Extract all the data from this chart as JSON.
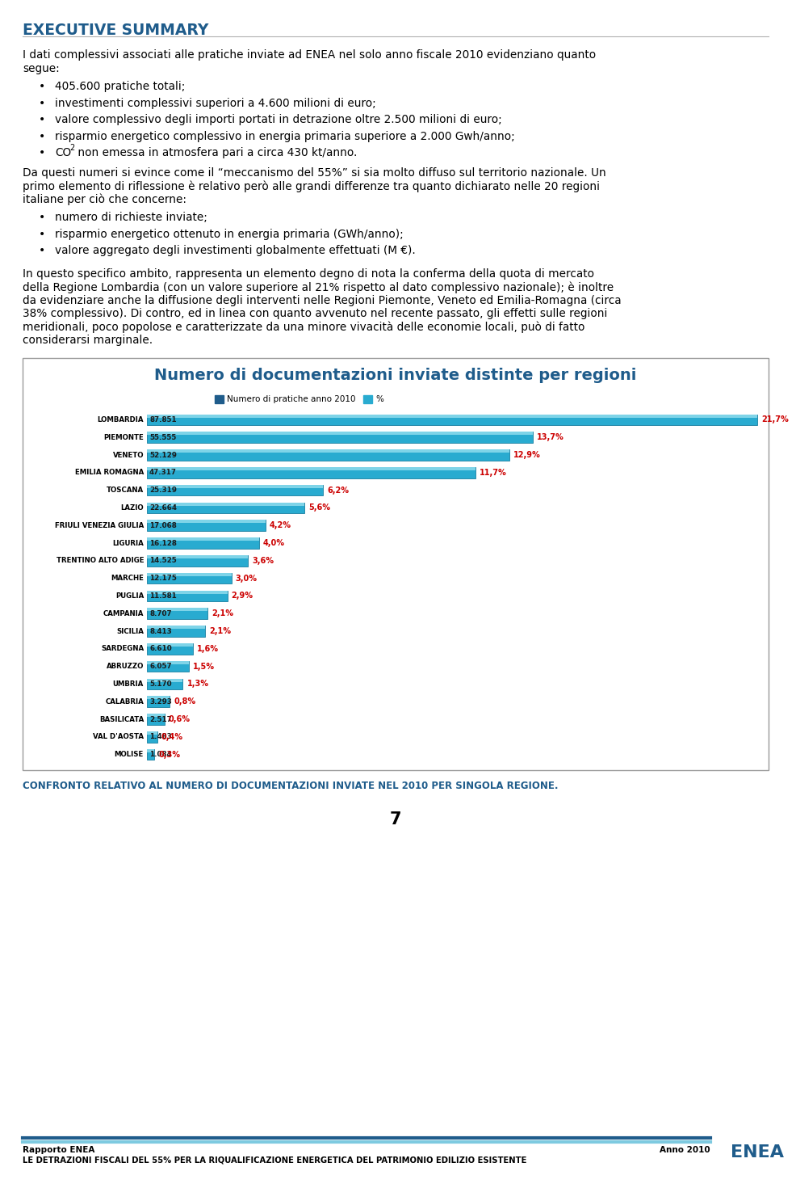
{
  "title_text": "EXECUTIVE SUMMARY",
  "para1_line1": "I dati complessivi associati alle pratiche inviate ad ENEA nel solo anno fiscale 2010 evidenziano quanto",
  "para1_line2": "segue:",
  "bullets1": [
    "405.600 pratiche totali;",
    "investimenti complessivi superiori a 4.600 milioni di euro;",
    "valore complessivo degli importi portati in detrazione oltre 2.500 milioni di euro;",
    "risparmio energetico complessivo in energia primaria superiore a 2.000 Gwh/anno;"
  ],
  "bullet_co2_pre": "CO",
  "bullet_co2_sub": "2",
  "bullet_co2_post": " non emessa in atmosfera pari a circa 430 kt/anno.",
  "para2_line1": "Da questi numeri si evince come il “meccanismo del 55%” si sia molto diffuso sul territorio nazionale. Un",
  "para2_line2": "primo elemento di riflessione è relativo però alle grandi differenze tra quanto dichiarato nelle 20 regioni",
  "para2_line3": "italiane per ciò che concerne:",
  "bullets2": [
    "numero di richieste inviate;",
    "risparmio energetico ottenuto in energia primaria (GWh/anno);",
    "valore aggregato degli investimenti globalmente effettuati (M €)."
  ],
  "para3_lines": [
    "In questo specifico ambito, rappresenta un elemento degno di nota la conferma della quota di mercato",
    "della Regione Lombardia (con un valore superiore al 21% rispetto al dato complessivo nazionale); è inoltre",
    "da evidenziare anche la diffusione degli interventi nelle Regioni Piemonte, Veneto ed Emilia-Romagna (circa",
    "38% complessivo). Di contro, ed in linea con quanto avvenuto nel recente passato, gli effetti sulle regioni",
    "meridionali, poco popolose e caratterizzate da una minore vivacità delle economie locali, può di fatto",
    "considerarsi marginale."
  ],
  "chart_title": "Numero di documentazioni inviate distinte per regioni",
  "legend1": "Numero di pratiche anno 2010",
  "legend2": "%",
  "regions": [
    "LOMBARDIA",
    "PIEMONTE",
    "VENETO",
    "EMILIA ROMAGNA",
    "TOSCANA",
    "LAZIO",
    "FRIULI VENEZIA GIULIA",
    "LIGURIA",
    "TRENTINO ALTO ADIGE",
    "MARCHE",
    "PUGLIA",
    "CAMPANIA",
    "SICILIA",
    "SARDEGNA",
    "ABRUZZO",
    "UMBRIA",
    "CALABRIA",
    "BASILICATA",
    "VAL D'AOSTA",
    "MOLISE"
  ],
  "values": [
    87851,
    55555,
    52129,
    47317,
    25319,
    22664,
    17068,
    16128,
    14525,
    12175,
    11581,
    8707,
    8413,
    6610,
    6057,
    5170,
    3293,
    2517,
    1483,
    1084
  ],
  "labels_val": [
    "87.851",
    "55.555",
    "52.129",
    "47.317",
    "25.319",
    "22.664",
    "17.068",
    "16.128",
    "14.525",
    "12.175",
    "11.581",
    "8.707",
    "8.413",
    "6.610",
    "6.057",
    "5.170",
    "3.293",
    "2.517",
    "1.483",
    "1.084"
  ],
  "percentages": [
    "21,7%",
    "13,7%",
    "12,9%",
    "11,7%",
    "6,2%",
    "5,6%",
    "4,2%",
    "4,0%",
    "3,6%",
    "3,0%",
    "2,9%",
    "2,1%",
    "2,1%",
    "1,6%",
    "1,5%",
    "1,3%",
    "0,8%",
    "0,6%",
    "0,4%",
    "0,3%"
  ],
  "footnote": "CONFRONTO RELATIVO AL NUMERO DI DOCUMENTAZIONI INVIATE NEL 2010 PER SINGOLA REGIONE.",
  "page_number": "7",
  "footer_left1": "Rapporto ENEA",
  "footer_right1": "Anno 2010",
  "footer_left2": "LE DETRAZIONI FISCALI DEL 55% PER LA RIQUALIFICAZIONE ENERGETICA DEL PATRIMONIO EDILIZIO ESISTENTE",
  "bg_color": "#FFFFFF",
  "header_color": "#1F5C8B",
  "bar_dark": "#1A7EA0",
  "bar_mid": "#29ABD0",
  "bar_light": "#7FD4E8",
  "text_color_pct": "#CC0000",
  "footer_bar1": "#1F5C8B",
  "footer_bar2": "#7ECAE0"
}
